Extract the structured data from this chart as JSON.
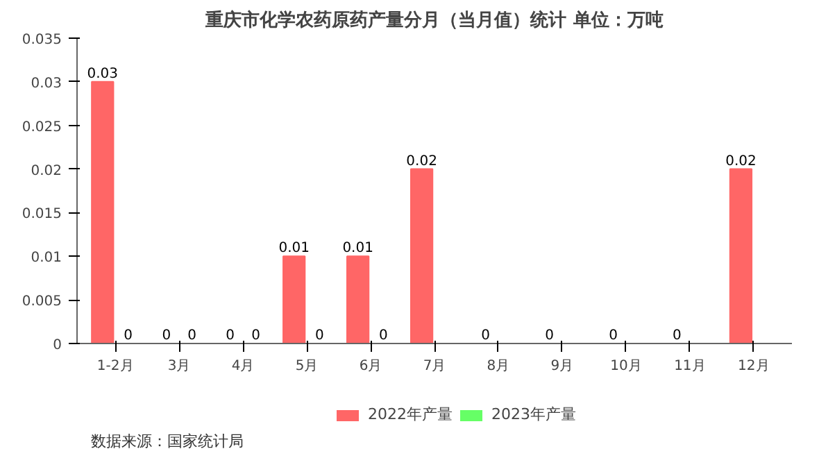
{
  "chart_data": {
    "type": "bar",
    "title": "重庆市化学农药原药产量分月（当月值）统计 单位：万吨",
    "categories": [
      "1-2月",
      "3月",
      "4月",
      "5月",
      "6月",
      "7月",
      "8月",
      "9月",
      "10月",
      "11月",
      "12月"
    ],
    "series": [
      {
        "name": "2022年产量",
        "color": "#ff6666",
        "values": [
          0.03,
          0,
          0,
          0.01,
          0.01,
          0.02,
          0,
          0,
          0,
          0,
          0.02
        ]
      },
      {
        "name": "2023年产量",
        "color": "#66ff66",
        "values": [
          0,
          0,
          0,
          0,
          0,
          null,
          null,
          null,
          null,
          null,
          null
        ]
      }
    ],
    "ylim": [
      0,
      0.035
    ],
    "yticks": [
      0,
      0.005,
      0.01,
      0.015,
      0.02,
      0.025,
      0.03,
      0.035
    ],
    "data_labels": true,
    "legend": "bottom",
    "grid": false,
    "annotations": [
      "数据来源：国家统计局"
    ]
  }
}
